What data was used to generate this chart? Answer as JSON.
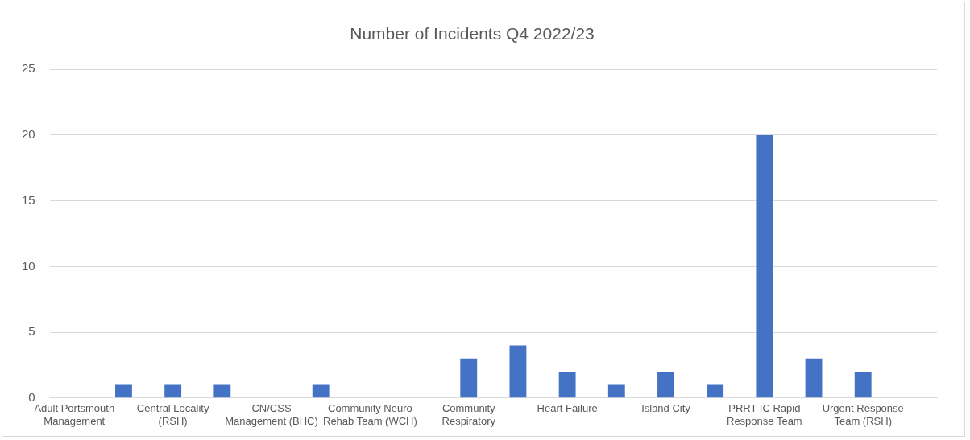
{
  "chart_data": {
    "type": "bar",
    "title": "Number of Incidents Q4 2022/23",
    "categories": [
      "Adult Portsmouth Management",
      null,
      "Central Locality (RSH)",
      null,
      "CN/CSS Management (BHC)",
      null,
      "Community Neuro Rehab Team (WCH)",
      null,
      "Community Respiratory",
      null,
      "Heart Failure",
      null,
      "Island City",
      null,
      "PRRT IC Rapid Response Team",
      null,
      "Urgent Response Team (RSH)",
      null
    ],
    "values": [
      0,
      1,
      1,
      1,
      0,
      1,
      0,
      0,
      3,
      4,
      2,
      1,
      2,
      1,
      20,
      3,
      2,
      0
    ],
    "color": "#4472c4",
    "ylim": [
      0,
      25
    ],
    "yticks": [
      0,
      5,
      10,
      15,
      20,
      25
    ],
    "grid": "y",
    "legend": false
  }
}
